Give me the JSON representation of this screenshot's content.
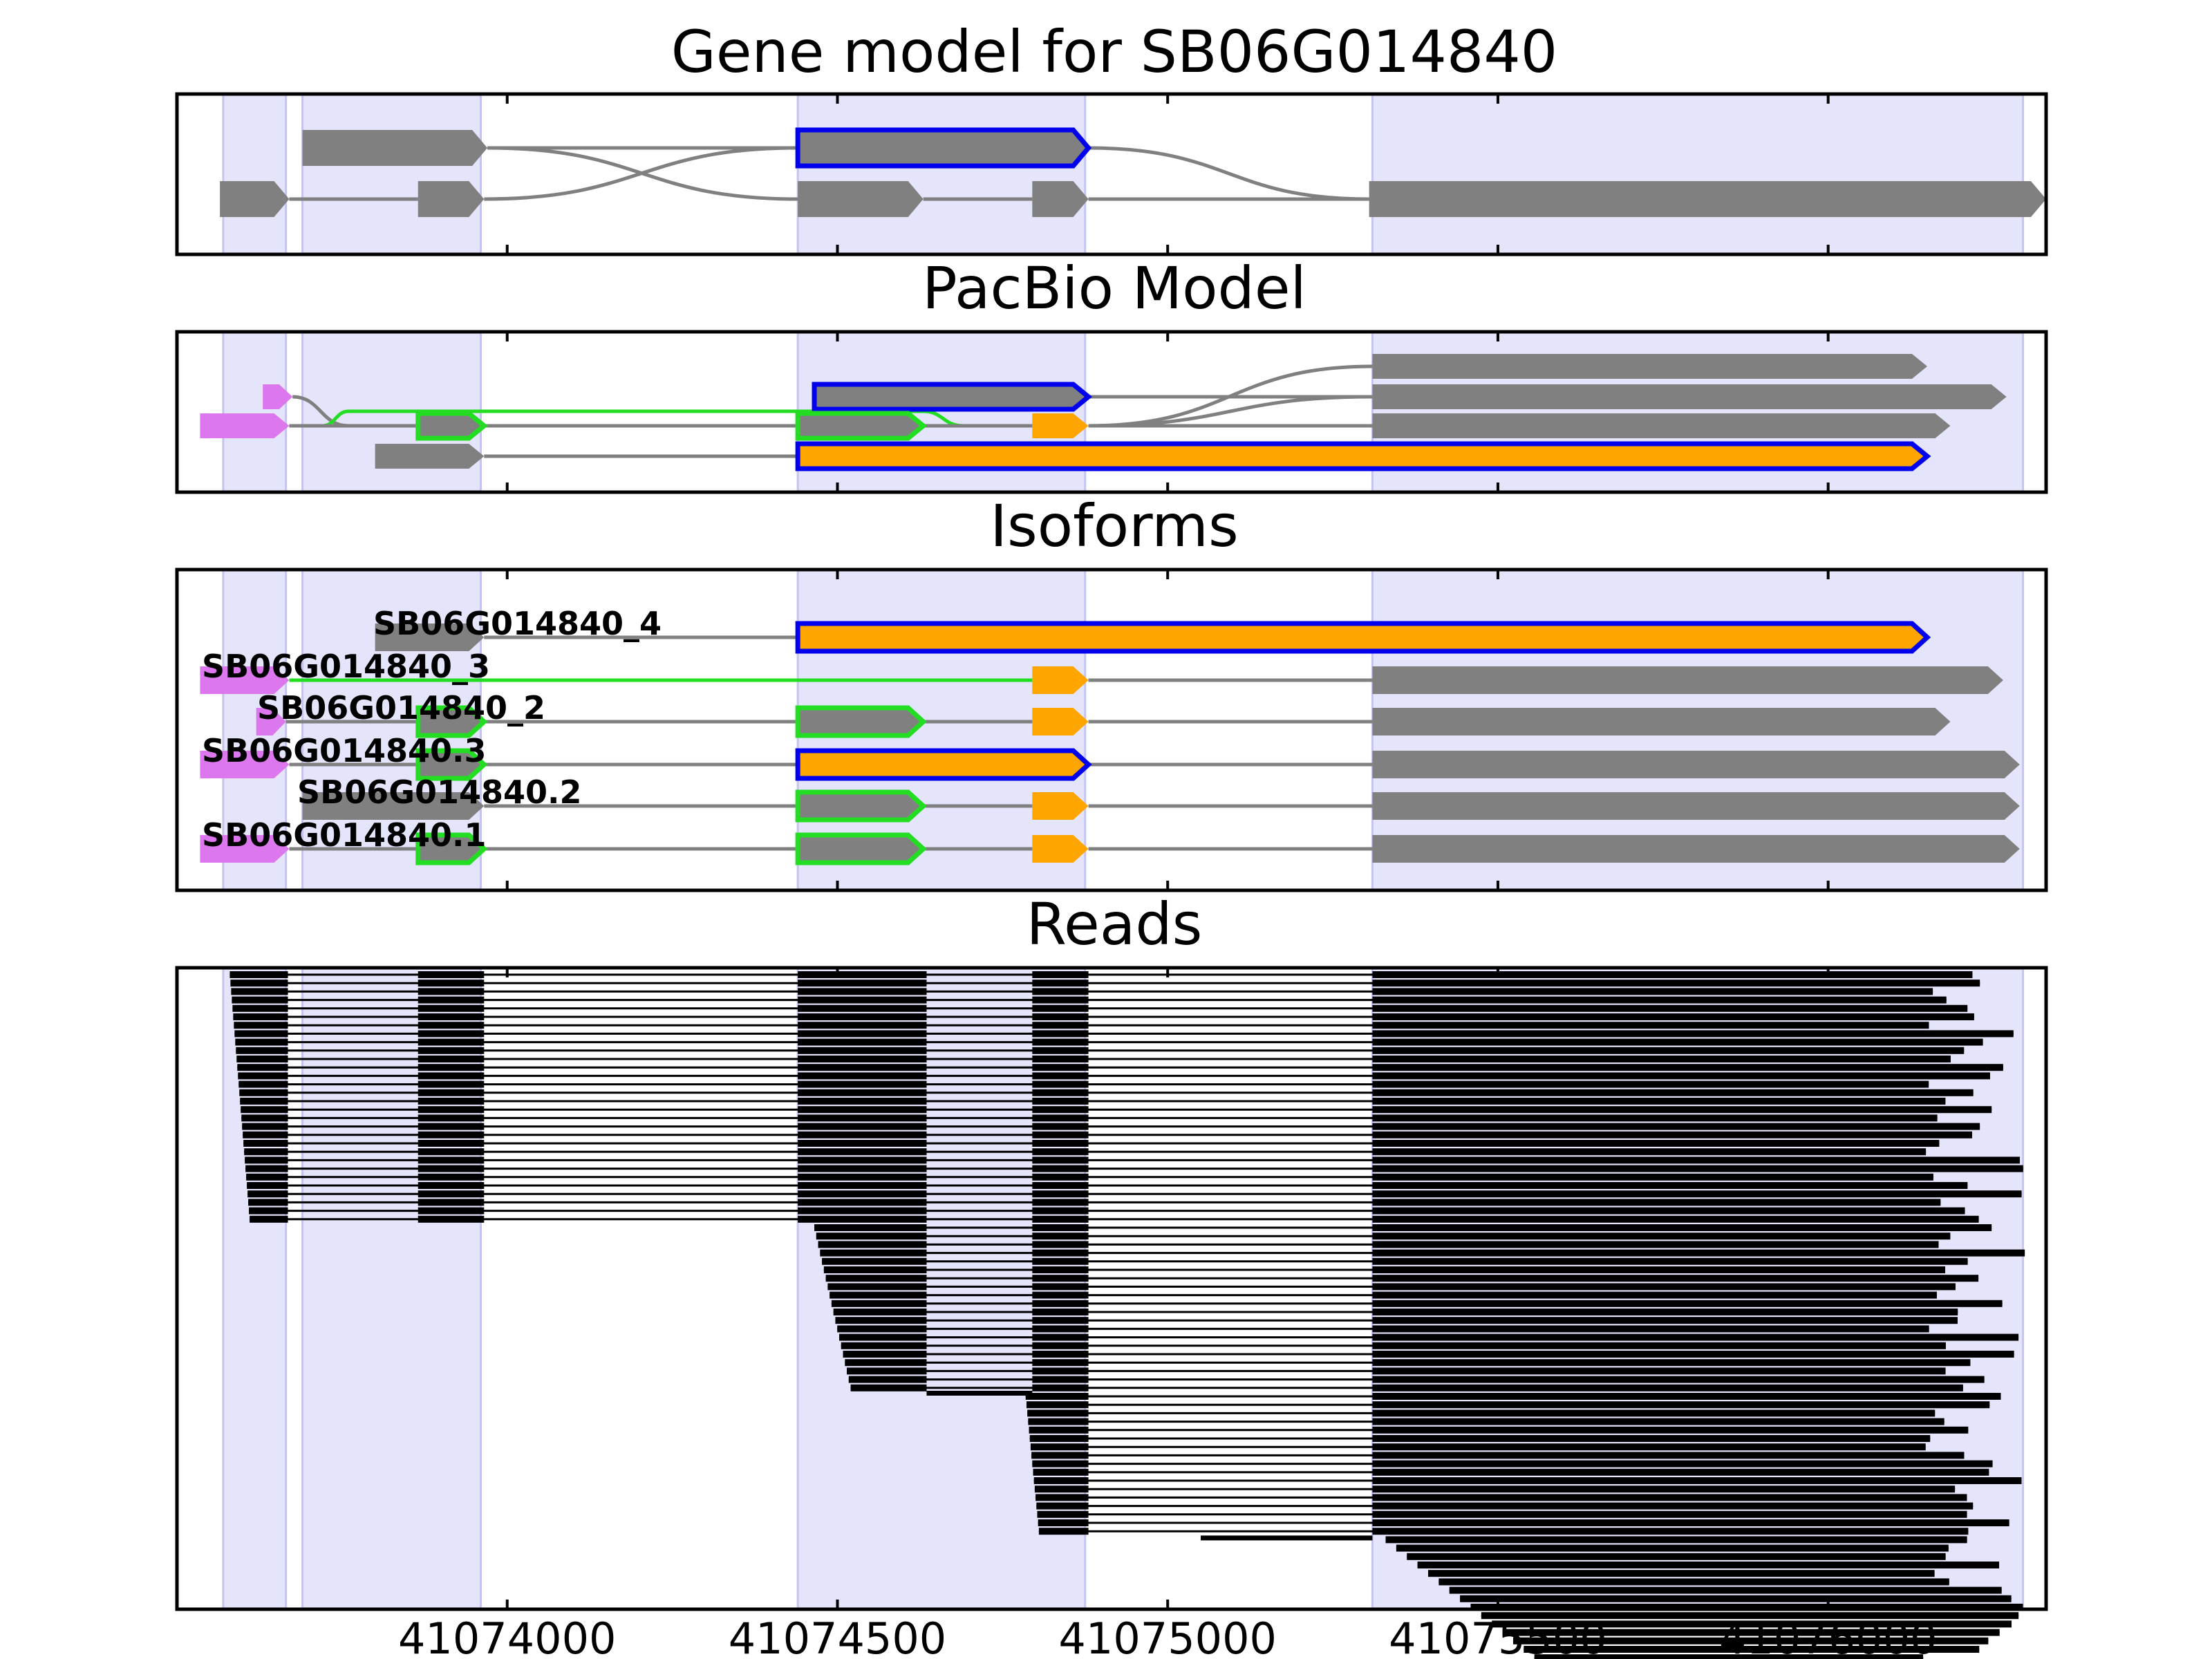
{
  "colors": {
    "gray": "#808080",
    "blue": "#0000ee",
    "orange": "#ffa500",
    "green": "#22dd22",
    "magenta": "#dd77ee",
    "shade": "#e4e4fb",
    "reads": "#000000"
  },
  "axis": {
    "xlim": [
      41073500,
      41076330
    ],
    "ticks": [
      "41074000",
      "41074500",
      "41075000",
      "41075500",
      "41076000"
    ],
    "tick_values": [
      41074000,
      41074500,
      41075000,
      41075500,
      41076000
    ]
  },
  "exon_regions": [
    [
      41073570,
      41073665
    ],
    [
      41073690,
      41073960
    ],
    [
      41074440,
      41074875
    ],
    [
      41075310,
      41076295
    ]
  ],
  "panels": {
    "gene_model": {
      "title": "Gene model for SB06G014840",
      "rows": [
        {
          "exons": [
            {
              "s": 41073690,
              "e": 41073970,
              "c": "gray"
            },
            {
              "s": 41074440,
              "e": 41074880,
              "c": "gray",
              "outline": "blue"
            }
          ],
          "introns": [
            [
              41073970,
              41074440,
              "g"
            ]
          ]
        },
        {
          "exons": [
            {
              "s": 41073565,
              "e": 41073670,
              "c": "gray"
            },
            {
              "s": 41073865,
              "e": 41073965,
              "c": "gray"
            },
            {
              "s": 41074440,
              "e": 41074630,
              "c": "gray"
            },
            {
              "s": 41074795,
              "e": 41074880,
              "c": "gray"
            },
            {
              "s": 41075305,
              "e": 41076330,
              "c": "gray"
            }
          ],
          "introns": [
            [
              41073670,
              41073865,
              "g"
            ],
            [
              41074630,
              41074795,
              "g"
            ]
          ]
        }
      ],
      "curves": [
        [
          0,
          41073970,
          1,
          41074440
        ],
        [
          1,
          41073965,
          0,
          41074440
        ],
        [
          0,
          41074880,
          1,
          41075305
        ],
        [
          1,
          41074880,
          1,
          41075305
        ]
      ]
    },
    "pacbio_model": {
      "title": "PacBio Model",
      "rows": [
        {
          "exons": [
            {
              "s": 41075310,
              "e": 41076150,
              "c": "gray"
            }
          ],
          "introns": []
        },
        {
          "exons": [
            {
              "s": 41073630,
              "e": 41073675,
              "c": "magenta"
            },
            {
              "s": 41074465,
              "e": 41074880,
              "c": "gray",
              "outline": "blue"
            },
            {
              "s": 41075310,
              "e": 41076270,
              "c": "gray"
            }
          ],
          "introns": [
            [
              41074880,
              41075310,
              "g"
            ]
          ]
        },
        {
          "exons": [
            {
              "s": 41073535,
              "e": 41073670,
              "c": "magenta"
            },
            {
              "s": 41073865,
              "e": 41073965,
              "c": "gray",
              "outline": "green"
            },
            {
              "s": 41074440,
              "e": 41074630,
              "c": "gray",
              "outline": "green"
            },
            {
              "s": 41074795,
              "e": 41074880,
              "c": "orange"
            },
            {
              "s": 41075310,
              "e": 41076185,
              "c": "gray"
            }
          ],
          "introns": [
            [
              41073670,
              41073865,
              "g"
            ],
            [
              41073965,
              41074440,
              "g"
            ],
            [
              41074630,
              41074795,
              "g"
            ],
            [
              41074880,
              41075310,
              "g"
            ]
          ]
        },
        {
          "exons": [
            {
              "s": 41073800,
              "e": 41073965,
              "c": "gray"
            },
            {
              "s": 41074440,
              "e": 41076150,
              "c": "orange",
              "outline": "blue"
            }
          ],
          "introns": [
            [
              41073965,
              41074440,
              "g"
            ]
          ]
        }
      ],
      "curves": [
        [
          1,
          41073675,
          2,
          41073760
        ],
        [
          2,
          41074880,
          0,
          41075310
        ],
        [
          2,
          41074880,
          1,
          41075310
        ]
      ],
      "green_path": [
        [
          2,
          41073670
        ],
        [
          2,
          41073720
        ],
        [
          2.3,
          41073760
        ],
        [
          2.3,
          41074630
        ],
        [
          2,
          41074690
        ],
        [
          2,
          41074795
        ]
      ]
    },
    "isoforms": {
      "title": "Isoforms",
      "rows": [
        {
          "label": "SB06G014840_4",
          "exons": [
            {
              "s": 41073800,
              "e": 41073965,
              "c": "gray"
            },
            {
              "s": 41074440,
              "e": 41076150,
              "c": "orange",
              "outline": "blue"
            }
          ],
          "introns": [
            [
              41073965,
              41074440,
              "g"
            ]
          ]
        },
        {
          "label": "SB06G014840_3",
          "exons": [
            {
              "s": 41073535,
              "e": 41073670,
              "c": "magenta"
            },
            {
              "s": 41074795,
              "e": 41074880,
              "c": "orange"
            },
            {
              "s": 41075310,
              "e": 41076265,
              "c": "gray"
            }
          ],
          "introns": [
            [
              41073670,
              41074795,
              "green"
            ],
            [
              41074880,
              41075310,
              "g"
            ]
          ]
        },
        {
          "label": "SB06G014840_2",
          "exons": [
            {
              "s": 41073620,
              "e": 41073665,
              "c": "magenta"
            },
            {
              "s": 41073865,
              "e": 41073965,
              "c": "gray",
              "outline": "green"
            },
            {
              "s": 41074440,
              "e": 41074630,
              "c": "gray",
              "outline": "green"
            },
            {
              "s": 41074795,
              "e": 41074880,
              "c": "orange"
            },
            {
              "s": 41075310,
              "e": 41076185,
              "c": "gray"
            }
          ],
          "introns": [
            [
              41073665,
              41073865,
              "g"
            ],
            [
              41073965,
              41074440,
              "g"
            ],
            [
              41074630,
              41074795,
              "g"
            ],
            [
              41074880,
              41075310,
              "g"
            ]
          ]
        },
        {
          "label": "SB06G014840.3",
          "exons": [
            {
              "s": 41073535,
              "e": 41073670,
              "c": "magenta"
            },
            {
              "s": 41073865,
              "e": 41073965,
              "c": "gray",
              "outline": "green"
            },
            {
              "s": 41074440,
              "e": 41074880,
              "c": "orange",
              "outline": "blue"
            },
            {
              "s": 41075310,
              "e": 41076290,
              "c": "gray"
            }
          ],
          "introns": [
            [
              41073670,
              41073865,
              "g"
            ],
            [
              41073965,
              41074440,
              "g"
            ],
            [
              41074880,
              41075310,
              "g"
            ]
          ]
        },
        {
          "label": "SB06G014840.2",
          "exons": [
            {
              "s": 41073690,
              "e": 41073965,
              "c": "gray"
            },
            {
              "s": 41074440,
              "e": 41074630,
              "c": "gray",
              "outline": "green"
            },
            {
              "s": 41074795,
              "e": 41074880,
              "c": "orange"
            },
            {
              "s": 41075310,
              "e": 41076290,
              "c": "gray"
            }
          ],
          "introns": [
            [
              41073965,
              41074440,
              "g"
            ],
            [
              41074630,
              41074795,
              "g"
            ],
            [
              41074880,
              41075310,
              "g"
            ]
          ]
        },
        {
          "label": "SB06G014840.1",
          "exons": [
            {
              "s": 41073535,
              "e": 41073670,
              "c": "magenta"
            },
            {
              "s": 41073865,
              "e": 41073965,
              "c": "gray",
              "outline": "green"
            },
            {
              "s": 41074440,
              "e": 41074630,
              "c": "gray",
              "outline": "green"
            },
            {
              "s": 41074795,
              "e": 41074880,
              "c": "orange"
            },
            {
              "s": 41075310,
              "e": 41076290,
              "c": "gray"
            }
          ],
          "introns": [
            [
              41073670,
              41073865,
              "g"
            ],
            [
              41073965,
              41074440,
              "g"
            ],
            [
              41074630,
              41074795,
              "g"
            ],
            [
              41074880,
              41075310,
              "g"
            ]
          ]
        }
      ]
    },
    "reads": {
      "title": "Reads",
      "groups": [
        {
          "count": 30,
          "start": [
            41073580,
            41073610
          ],
          "blocks": [
            [
              41073580,
              41073668
            ],
            [
              41073865,
              41073965
            ],
            [
              41074440,
              41074635
            ],
            [
              41074795,
              41074880
            ],
            [
              41075310,
              41076200
            ]
          ]
        },
        {
          "count": 20,
          "start": [
            41074465,
            41074520
          ],
          "blocks": [
            [
              41074465,
              41074635
            ],
            [
              41074795,
              41074880
            ],
            [
              41075310,
              41076200
            ]
          ]
        },
        {
          "count": 17,
          "start": [
            41074785,
            41074805
          ],
          "blocks": [
            [
              41074785,
              41074880
            ],
            [
              41075310,
              41076200
            ]
          ]
        },
        {
          "count": 24,
          "start": [
            41075330,
            41075700
          ],
          "blocks": [
            [
              41075330,
              41076200
            ]
          ]
        }
      ],
      "end_range": [
        41076140,
        41076300
      ],
      "extra_reads": [
        [
          41074635,
          41074795
        ],
        [
          41075050,
          41075310
        ]
      ]
    }
  }
}
